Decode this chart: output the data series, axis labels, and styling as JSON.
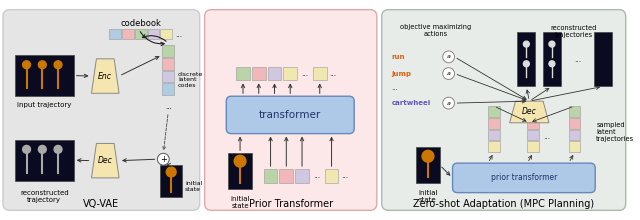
{
  "panel1_title": "VQ-VAE",
  "panel2_title": "Prior Transformer",
  "panel3_title": "Zero-shot Adaptation (MPC Planning)",
  "panel1_bg": "#e5e5e5",
  "panel2_bg": "#fce8e8",
  "panel3_bg": "#e8ece8",
  "enc_dec_color": "#f5e6b0",
  "transformer_color": "#aec8e8",
  "prior_transformer_color": "#aec8e8",
  "codebook_colors": [
    "#b0cce0",
    "#f0b8b8",
    "#b8d4a8",
    "#d4c8e0",
    "#f0e8b0"
  ],
  "latent_colors": [
    "#b8d4a8",
    "#f0b8b8",
    "#d0c8e0",
    "#b0cce0"
  ],
  "token_colors": [
    "#b8d4a8",
    "#f0b8b8",
    "#d0c8e0",
    "#f0e8b0"
  ],
  "lat3_colors_col1": [
    "#b8d4a8",
    "#f0b8b8",
    "#d0c8e0",
    "#f0e8b0"
  ],
  "lat3_colors_col2": [
    "#b8d4a8",
    "#f0b8b8",
    "#d0c8e0",
    "#f0e8b0"
  ],
  "image_bg_dark": "#0a0a20",
  "image_bg_mid": "#101828",
  "run_color": "#e06010",
  "jump_color": "#e06010",
  "cartwheel_color": "#6655bb",
  "label_fontsize": 6.5,
  "small_fontsize": 5.0,
  "tiny_fontsize": 4.5
}
